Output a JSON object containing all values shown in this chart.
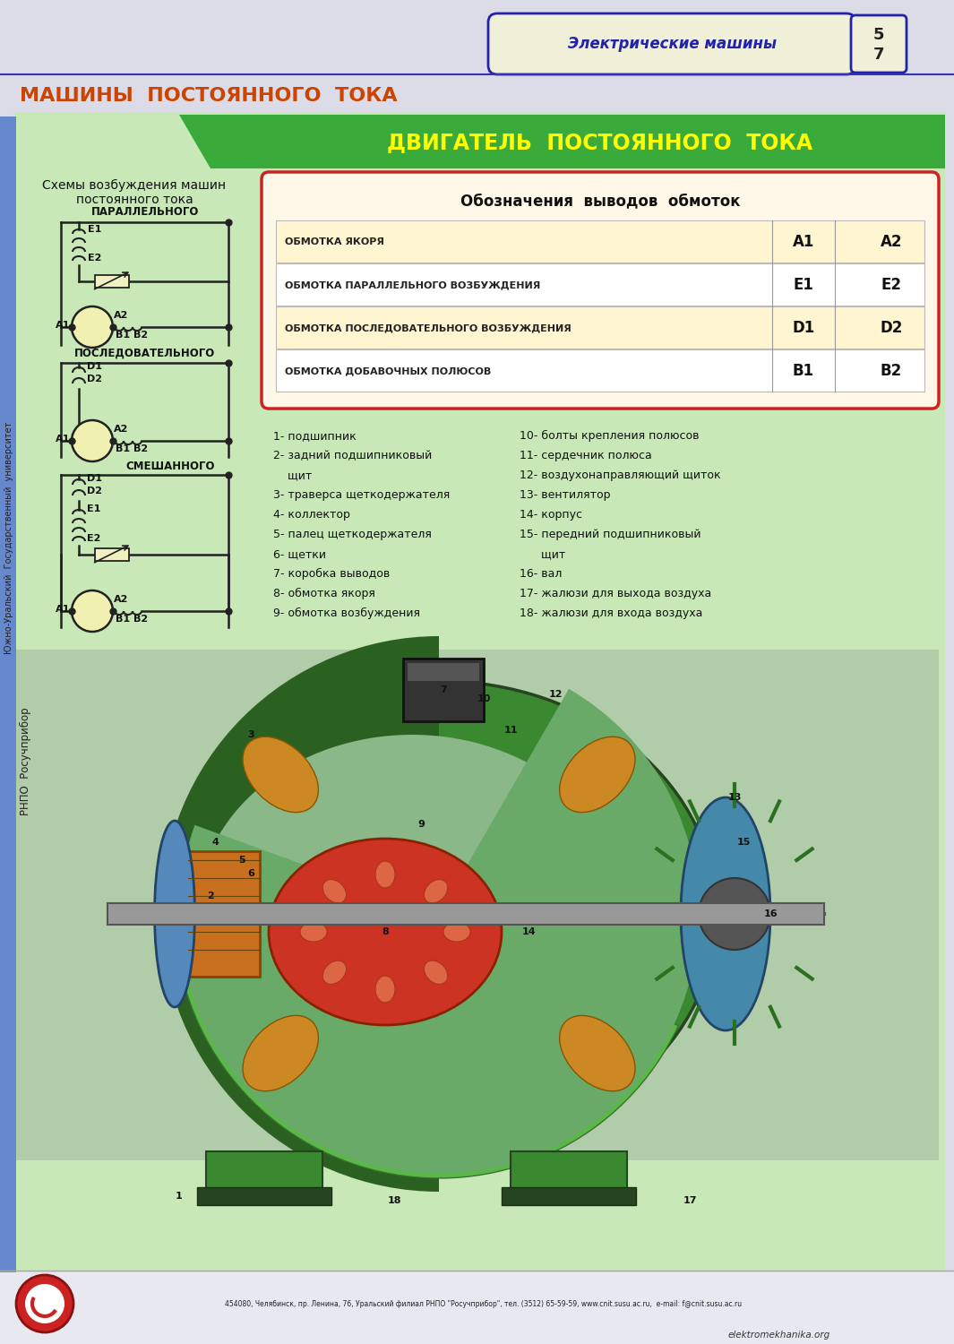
{
  "bg_color": "#dcdce8",
  "green_bg": "#c8e8b8",
  "green_header": "#3aaa3a",
  "page_title": "МАШИНЫ  ПОСТОЯННОГО  ТОКА",
  "page_title_color": "#cc4400",
  "section_title": "ДВИГАТЕЛЬ  ПОСТОЯННОГО  ТОКА",
  "section_title_color": "#ffff00",
  "tab_title": "Электрические машины",
  "tab_border_color": "#2222aa",
  "tab_fill_color": "#f0f0d8",
  "schema_title": "Схемы возбуждения машин\nпостоянного тока",
  "parallel_label": "ПАРАЛЛЕЛЬНОГО",
  "series_label": "ПОСЛЕДОВАТЕЛЬНОГО",
  "mixed_label": "СМЕШАННОГО",
  "table_title": "Обозначения  выводов  обмоток",
  "table_rows": [
    [
      "ОБМОТКА ЯКОРЯ",
      "A1",
      "A2"
    ],
    [
      "ОБМОТКА ПАРАЛЛЕЛЬНОГО ВОЗБУЖДЕНИЯ",
      "E1",
      "E2"
    ],
    [
      "ОБМОТКА ПОСЛЕДОВАТЕЛЬНОГО ВОЗБУЖДЕНИЯ",
      "D1",
      "D2"
    ],
    [
      "ОБМОТКА ДОБАВОЧНЫХ ПОЛЮСОВ",
      "B1",
      "B2"
    ]
  ],
  "table_border_color": "#cc2222",
  "table_bg": "#fff8e8",
  "parts_left": [
    "1- подшипник",
    "2- задний подшипниковый",
    "    щит",
    "3- траверса щеткодержателя",
    "4- коллектор",
    "5- палец щеткодержателя",
    "6- щетки",
    "7- коробка выводов",
    "8- обмотка якоря",
    "9- обмотка возбуждения"
  ],
  "parts_right": [
    "10- болты крепления полюсов",
    "11- сердечник полюса",
    "12- воздухонаправляющий щиток",
    "13- вентилятор",
    "14- корпус",
    "15- передний подшипниковый",
    "      щит",
    "16- вал",
    "17- жалюзи для выхода воздуха",
    "18- жалюзи для входа воздуха"
  ],
  "left_vertical_text1": "РНПО  Росучприбор",
  "left_vertical_text2": "Южно-Уральский  Государственный  университет",
  "footer_text": "454080, Челябинск, пр. Ленина, 76, Уральский филиал РНПО \"Росучприбор\", тел. (3512) 65-59-59, www.cnit.susu.ac.ru,  e-mail: f@cnit.susu.ac.ru",
  "website_text": "elektromekhanika.org"
}
